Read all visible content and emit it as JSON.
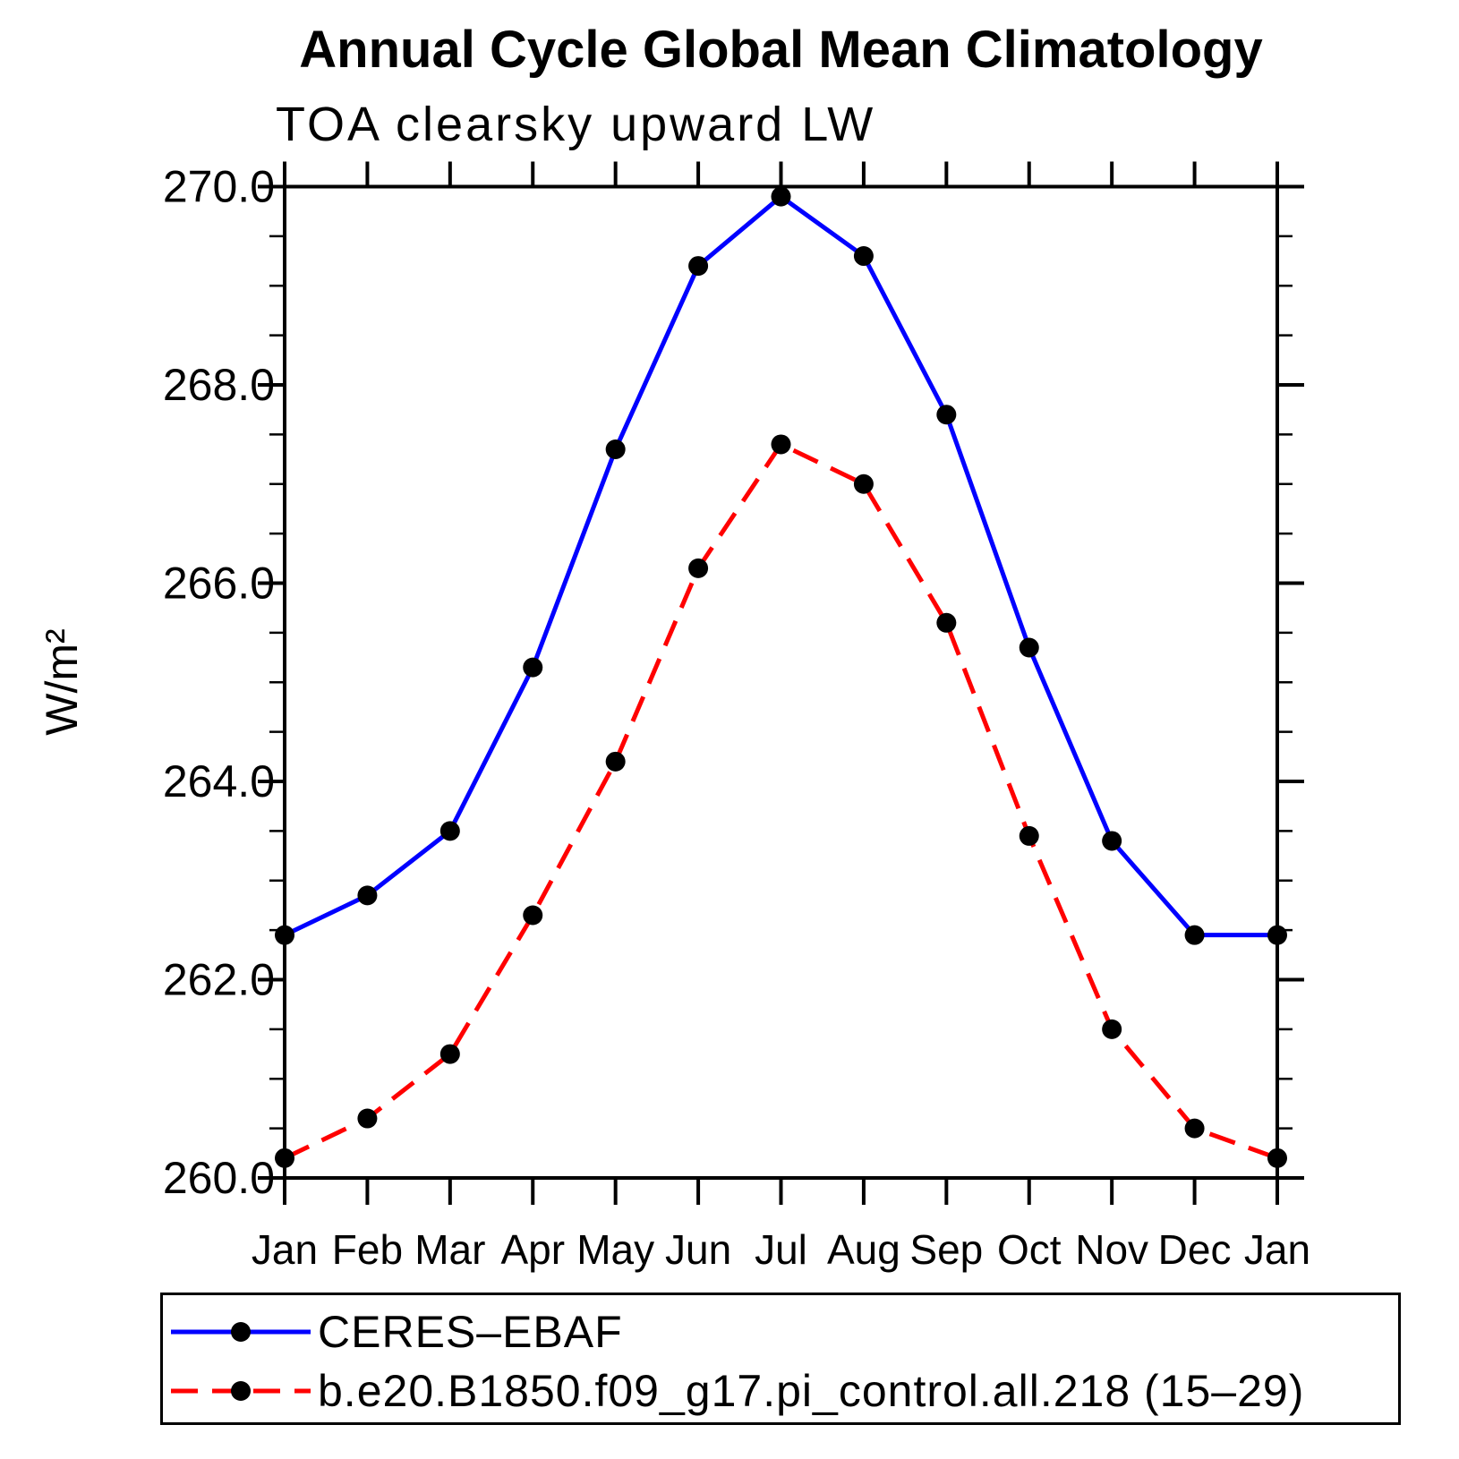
{
  "chart_data": {
    "type": "line",
    "title": "Annual Cycle Global Mean Climatology",
    "subtitle": "TOA clearsky upward LW",
    "ylabel": "W/m²",
    "xlabel": "",
    "categories": [
      "Jan",
      "Feb",
      "Mar",
      "Apr",
      "May",
      "Jun",
      "Jul",
      "Aug",
      "Sep",
      "Oct",
      "Nov",
      "Dec",
      "Jan"
    ],
    "ylim": [
      260.0,
      270.0
    ],
    "y_major_step": 2.0,
    "y_minor_step": 0.5,
    "y_tick_labels": [
      "260.0",
      "262.0",
      "264.0",
      "266.0",
      "268.0",
      "270.0"
    ],
    "grid": false,
    "legend_position": "bottom-left-box",
    "marker": "circle",
    "marker_color": "#000000",
    "axis_color": "#000000",
    "series": [
      {
        "name": "CERES–EBAF",
        "color": "#0000ff",
        "line_style": "solid",
        "values": [
          262.45,
          262.85,
          263.5,
          265.15,
          267.35,
          269.2,
          269.9,
          269.3,
          267.7,
          265.35,
          263.4,
          262.45,
          262.45
        ]
      },
      {
        "name": "b.e20.B1850.f09_g17.pi_control.all.218 (15–29)",
        "color": "#ff0000",
        "line_style": "dashed",
        "values": [
          260.2,
          260.6,
          261.25,
          262.65,
          264.2,
          266.15,
          267.4,
          267.0,
          265.6,
          263.45,
          261.5,
          260.5,
          260.2
        ]
      }
    ]
  }
}
